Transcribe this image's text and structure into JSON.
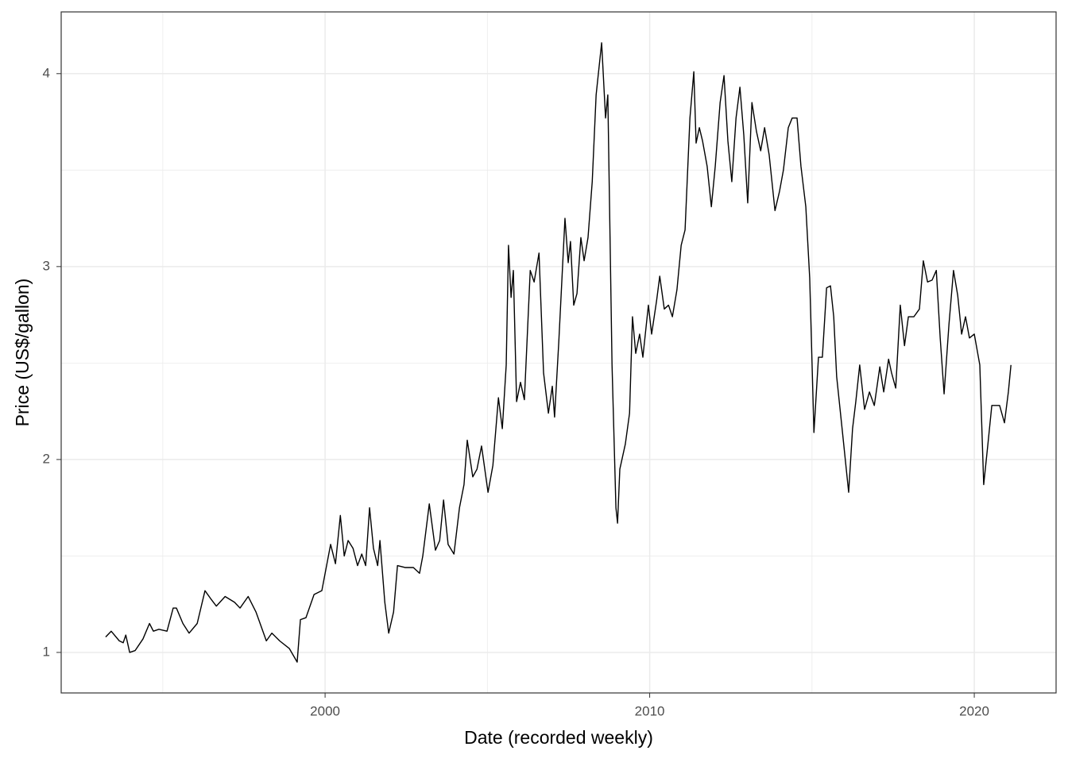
{
  "chart_data": {
    "type": "line",
    "x_label": "Date (recorded weekly)",
    "y_label": "Price (US$/gallon)",
    "x": [
      1993.24,
      1993.41,
      1993.66,
      1993.78,
      1993.86,
      1993.98,
      1994.15,
      1994.39,
      1994.59,
      1994.71,
      1994.88,
      1995.13,
      1995.32,
      1995.42,
      1995.62,
      1995.81,
      1996.06,
      1996.3,
      1996.47,
      1996.65,
      1996.92,
      1997.21,
      1997.38,
      1997.63,
      1997.87,
      1998.19,
      1998.36,
      1998.6,
      1998.9,
      1999.14,
      1999.24,
      1999.41,
      1999.66,
      1999.9,
      2000.17,
      2000.32,
      2000.47,
      2000.59,
      2000.71,
      2000.86,
      2001.0,
      2001.13,
      2001.25,
      2001.37,
      2001.49,
      2001.62,
      2001.69,
      2001.84,
      2001.96,
      2002.11,
      2002.23,
      2002.47,
      2002.72,
      2002.91,
      2003.01,
      2003.21,
      2003.4,
      2003.53,
      2003.65,
      2003.79,
      2003.97,
      2004.14,
      2004.28,
      2004.38,
      2004.55,
      2004.68,
      2004.82,
      2005.02,
      2005.17,
      2005.34,
      2005.46,
      2005.58,
      2005.65,
      2005.73,
      2005.8,
      2005.9,
      2006.02,
      2006.14,
      2006.32,
      2006.44,
      2006.59,
      2006.73,
      2006.88,
      2007.0,
      2007.07,
      2007.2,
      2007.39,
      2007.49,
      2007.56,
      2007.66,
      2007.76,
      2007.88,
      2007.98,
      2008.1,
      2008.23,
      2008.35,
      2008.52,
      2008.64,
      2008.71,
      2008.84,
      2008.96,
      2009.01,
      2009.08,
      2009.25,
      2009.38,
      2009.47,
      2009.57,
      2009.69,
      2009.79,
      2009.96,
      2010.06,
      2010.21,
      2010.31,
      2010.45,
      2010.58,
      2010.7,
      2010.84,
      2010.97,
      2011.09,
      2011.24,
      2011.36,
      2011.43,
      2011.53,
      2011.63,
      2011.77,
      2011.9,
      2012.02,
      2012.17,
      2012.29,
      2012.41,
      2012.53,
      2012.66,
      2012.78,
      2012.9,
      2013.02,
      2013.15,
      2013.29,
      2013.42,
      2013.54,
      2013.68,
      2013.86,
      2014.0,
      2014.12,
      2014.27,
      2014.39,
      2014.54,
      2014.66,
      2014.81,
      2014.93,
      2015.06,
      2015.2,
      2015.32,
      2015.45,
      2015.57,
      2015.67,
      2015.76,
      2015.94,
      2016.13,
      2016.25,
      2016.35,
      2016.47,
      2016.62,
      2016.77,
      2016.92,
      2017.09,
      2017.21,
      2017.36,
      2017.45,
      2017.58,
      2017.72,
      2017.85,
      2017.97,
      2018.14,
      2018.31,
      2018.43,
      2018.56,
      2018.7,
      2018.83,
      2018.95,
      2019.07,
      2019.22,
      2019.36,
      2019.49,
      2019.61,
      2019.73,
      2019.85,
      2020.0,
      2020.17,
      2020.29,
      2020.42,
      2020.54,
      2020.69,
      2020.78,
      2020.93,
      2021.05,
      2021.13
    ],
    "values": [
      1.08,
      1.11,
      1.06,
      1.05,
      1.09,
      1.0,
      1.01,
      1.07,
      1.15,
      1.11,
      1.12,
      1.11,
      1.23,
      1.23,
      1.15,
      1.1,
      1.15,
      1.32,
      1.28,
      1.24,
      1.29,
      1.26,
      1.23,
      1.29,
      1.21,
      1.06,
      1.1,
      1.06,
      1.02,
      0.95,
      1.17,
      1.18,
      1.3,
      1.32,
      1.56,
      1.46,
      1.71,
      1.5,
      1.58,
      1.54,
      1.45,
      1.51,
      1.45,
      1.75,
      1.54,
      1.45,
      1.58,
      1.26,
      1.1,
      1.21,
      1.45,
      1.44,
      1.44,
      1.41,
      1.5,
      1.77,
      1.53,
      1.58,
      1.79,
      1.56,
      1.51,
      1.75,
      1.87,
      2.1,
      1.91,
      1.95,
      2.07,
      1.83,
      1.97,
      2.32,
      2.16,
      2.49,
      3.11,
      2.84,
      2.98,
      2.3,
      2.4,
      2.31,
      2.98,
      2.92,
      3.07,
      2.45,
      2.24,
      2.38,
      2.22,
      2.61,
      3.25,
      3.02,
      3.13,
      2.8,
      2.86,
      3.15,
      3.03,
      3.15,
      3.44,
      3.89,
      4.16,
      3.77,
      3.89,
      2.49,
      1.75,
      1.67,
      1.95,
      2.08,
      2.24,
      2.74,
      2.55,
      2.65,
      2.53,
      2.8,
      2.65,
      2.82,
      2.95,
      2.78,
      2.8,
      2.74,
      2.88,
      3.11,
      3.19,
      3.77,
      4.01,
      3.64,
      3.72,
      3.65,
      3.52,
      3.31,
      3.52,
      3.85,
      3.99,
      3.65,
      3.44,
      3.77,
      3.93,
      3.68,
      3.33,
      3.85,
      3.7,
      3.6,
      3.72,
      3.58,
      3.29,
      3.39,
      3.5,
      3.72,
      3.77,
      3.77,
      3.52,
      3.31,
      2.94,
      2.14,
      2.53,
      2.53,
      2.89,
      2.9,
      2.74,
      2.43,
      2.14,
      1.83,
      2.16,
      2.3,
      2.49,
      2.26,
      2.35,
      2.28,
      2.48,
      2.35,
      2.52,
      2.45,
      2.37,
      2.8,
      2.59,
      2.74,
      2.74,
      2.78,
      3.03,
      2.92,
      2.93,
      2.98,
      2.63,
      2.34,
      2.7,
      2.98,
      2.85,
      2.65,
      2.74,
      2.63,
      2.65,
      2.49,
      1.87,
      2.08,
      2.28,
      2.28,
      2.28,
      2.19,
      2.35,
      2.49
    ],
    "color": "#000000",
    "xlim": [
      1991.87,
      2022.52
    ],
    "xticks": [
      2000,
      2010,
      2020
    ],
    "ylim": [
      0.79,
      4.32
    ],
    "yticks": [
      1,
      2,
      3,
      4
    ],
    "x_minor_grid": [
      1995,
      2005,
      2015
    ],
    "y_minor_grid": [
      1.5,
      2.5,
      3.5
    ],
    "grid": true
  }
}
